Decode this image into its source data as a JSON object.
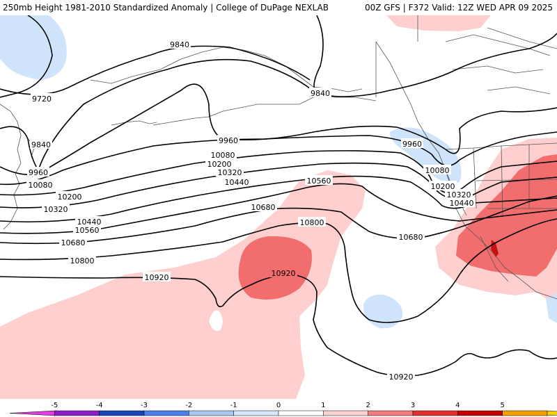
{
  "header": {
    "title_left": "250mb Height 1981-2010 Standardized Anomaly | College of DuPage NEXLAB",
    "title_right": "00Z GFS | F372 Valid: 12Z WED APR 09 2025"
  },
  "contour_labels": [
    {
      "text": "9840"
    },
    {
      "text": "9720"
    },
    {
      "text": "9840"
    },
    {
      "text": "9960"
    },
    {
      "text": "9960"
    },
    {
      "text": "10080"
    },
    {
      "text": "9840"
    },
    {
      "text": "9960"
    },
    {
      "text": "10080"
    },
    {
      "text": "10200"
    },
    {
      "text": "10320"
    },
    {
      "text": "10440"
    },
    {
      "text": "10560"
    },
    {
      "text": "10080"
    },
    {
      "text": "10200"
    },
    {
      "text": "10320"
    },
    {
      "text": "10440"
    },
    {
      "text": "10200"
    },
    {
      "text": "10320"
    },
    {
      "text": "10440"
    },
    {
      "text": "10560"
    },
    {
      "text": "10680"
    },
    {
      "text": "10680"
    },
    {
      "text": "10800"
    },
    {
      "text": "10800"
    },
    {
      "text": "10680"
    },
    {
      "text": "10920"
    },
    {
      "text": "10920"
    },
    {
      "text": "10920"
    }
  ],
  "colorbar": {
    "ticks": [
      "-5",
      "-4",
      "-3",
      "-2",
      "-1",
      "0",
      "1",
      "2",
      "3",
      "4",
      "5"
    ],
    "colors": [
      "#e040e0",
      "#8a1fc7",
      "#1846b8",
      "#4a7ee8",
      "#a9c9f2",
      "#d7e8fb",
      "#ffffff",
      "#fbd0d0",
      "#f27b7b",
      "#e23030",
      "#c40000",
      "#f5a000",
      "#f5d000"
    ]
  },
  "colors": {
    "positive_light": "#ffcfcf",
    "positive_mid": "#f26d6d",
    "positive_strong": "#c81010",
    "negative_light": "#cfe3fb",
    "contour": "#000000",
    "land_border": "#555555"
  }
}
